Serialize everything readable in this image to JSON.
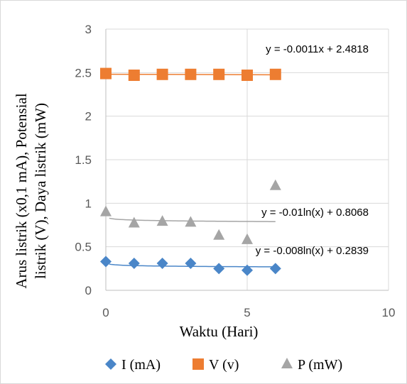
{
  "chart_data": {
    "type": "scatter",
    "title": "",
    "xlabel": "Waktu (Hari)",
    "ylabel_lines": [
      "Arus listrik (x0,1 mA), Potensial",
      "listrik (V), Daya listrik (mW)"
    ],
    "xlim": [
      0,
      10
    ],
    "ylim": [
      0,
      3
    ],
    "x_ticks": [
      0,
      5,
      10
    ],
    "y_ticks": [
      0,
      0.5,
      1,
      1.5,
      2,
      2.5,
      3
    ],
    "x_tick_labels": [
      "0",
      "5",
      "10"
    ],
    "y_tick_labels": [
      "0",
      "0.5",
      "1",
      "1.5",
      "2",
      "2.5",
      "3"
    ],
    "grid": true,
    "legend_position": "bottom",
    "series": [
      {
        "name": "I (mA)",
        "marker": "diamond",
        "color": "#4a86c8",
        "x": [
          0,
          1,
          2,
          3,
          4,
          5,
          6
        ],
        "y": [
          0.33,
          0.31,
          0.31,
          0.31,
          0.25,
          0.23,
          0.25
        ],
        "trendline": {
          "type": "log",
          "a": -0.008,
          "b": 0.2839,
          "color": "#4a86c8",
          "equation": "y = -0.008ln(x) + 0.2839"
        }
      },
      {
        "name": "V (v)",
        "marker": "square",
        "color": "#ed7d31",
        "x": [
          0,
          1,
          2,
          3,
          4,
          5,
          6
        ],
        "y": [
          2.49,
          2.47,
          2.48,
          2.48,
          2.48,
          2.47,
          2.48
        ],
        "trendline": {
          "type": "linear",
          "a": -0.0011,
          "b": 2.4818,
          "color": "#ed7d31",
          "equation": "y = -0.0011x + 2.4818"
        }
      },
      {
        "name": "P (mW)",
        "marker": "triangle",
        "color": "#a5a5a5",
        "x": [
          0,
          1,
          2,
          3,
          4,
          5,
          6
        ],
        "y": [
          0.9,
          0.77,
          0.79,
          0.78,
          0.63,
          0.58,
          1.2
        ],
        "trendline": {
          "type": "log",
          "a": -0.01,
          "b": 0.8068,
          "color": "#a5a5a5",
          "equation": "y = -0.01ln(x) + 0.8068"
        }
      }
    ]
  }
}
